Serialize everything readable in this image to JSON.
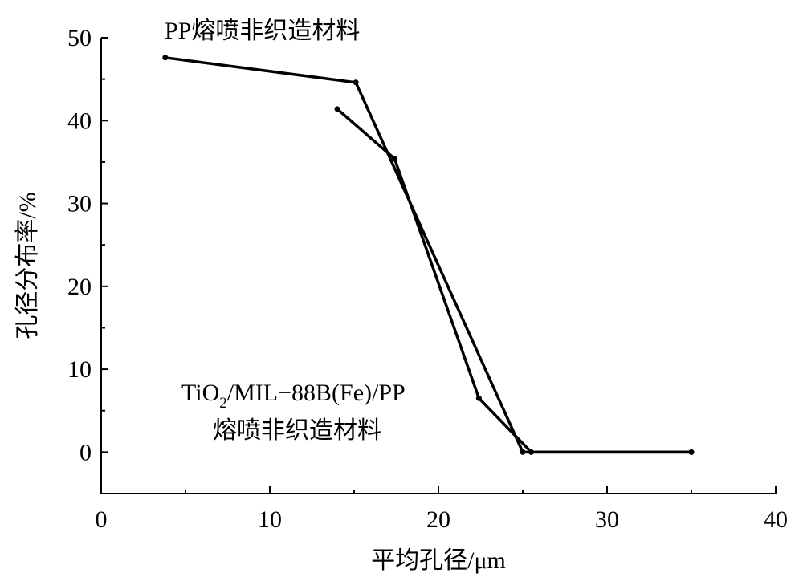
{
  "chart_data": {
    "type": "line",
    "xlabel": "平均孔径/μm",
    "ylabel": "孔径分布率/%",
    "xlim": [
      0,
      40
    ],
    "ylim": [
      -5,
      50
    ],
    "x_ticks": [
      0,
      10,
      20,
      30,
      40
    ],
    "y_ticks": [
      0,
      10,
      20,
      30,
      40,
      50
    ],
    "grid": false,
    "series": [
      {
        "name": "PP熔喷非织造材料",
        "points": [
          [
            3.8,
            47.6
          ],
          [
            15.1,
            44.6
          ],
          [
            25.0,
            0.0
          ],
          [
            35.0,
            0.0
          ]
        ]
      },
      {
        "name": "TiO2/MIL-88B(Fe)/PP 熔喷非织造材料",
        "points": [
          [
            14.0,
            41.4
          ],
          [
            17.4,
            35.4
          ],
          [
            22.4,
            6.5
          ],
          [
            25.5,
            0.0
          ],
          [
            35.0,
            0.0
          ]
        ]
      }
    ],
    "annotations": {
      "pp_label": "PP熔喷非织造材料",
      "tio2_line1_base": "TiO",
      "tio2_line1_sub": "2",
      "tio2_line1_rest": "/MIL−88B(Fe)/PP",
      "tio2_line2": "熔喷非织造材料"
    }
  }
}
